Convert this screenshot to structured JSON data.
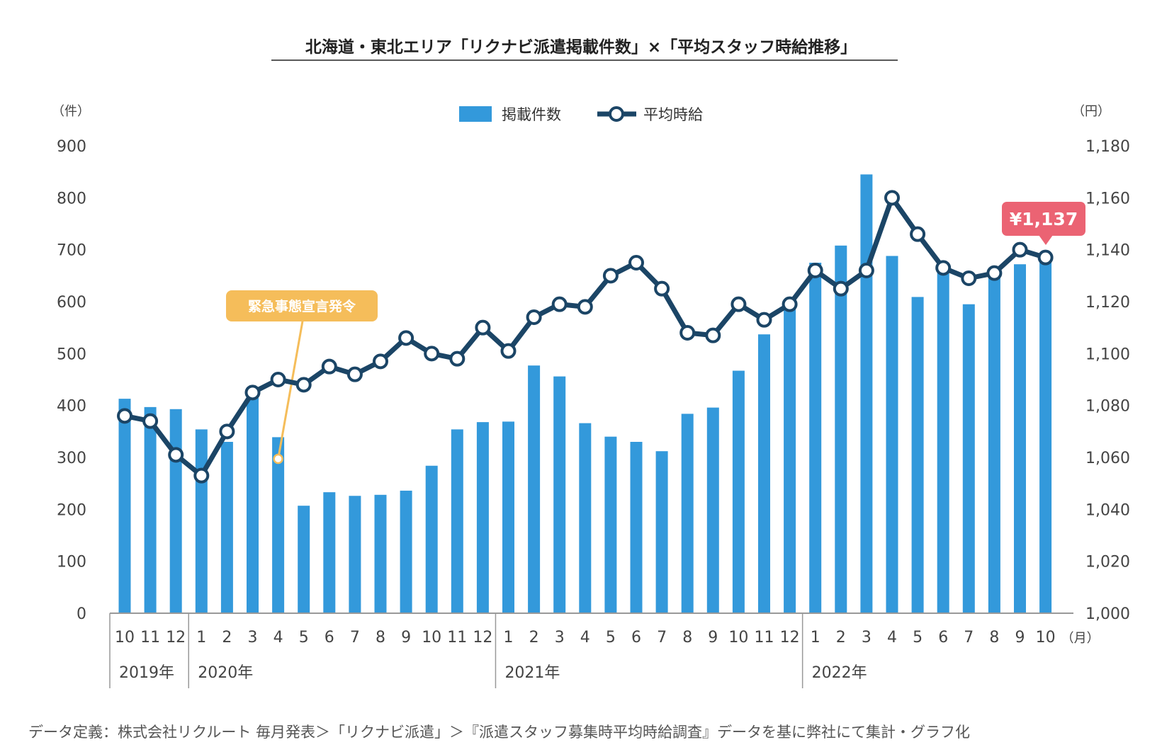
{
  "chart_data": {
    "type": "bar",
    "title": "北海道・東北エリア「リクナビ派遣掲載件数」×「平均スタッフ時給推移」",
    "left_unit": "（件）",
    "right_unit": "（円）",
    "month_unit": "（月）",
    "categories": [
      "10",
      "11",
      "12",
      "1",
      "2",
      "3",
      "4",
      "5",
      "6",
      "7",
      "8",
      "9",
      "10",
      "11",
      "12",
      "1",
      "2",
      "3",
      "4",
      "5",
      "6",
      "7",
      "8",
      "9",
      "10",
      "11",
      "12",
      "1",
      "2",
      "3",
      "4",
      "5",
      "6",
      "7",
      "8",
      "9",
      "10"
    ],
    "years": [
      {
        "label": "2019年",
        "start_index": 0
      },
      {
        "label": "2020年",
        "start_index": 3
      },
      {
        "label": "2021年",
        "start_index": 15
      },
      {
        "label": "2022年",
        "start_index": 27
      }
    ],
    "series": [
      {
        "name": "掲載件数",
        "type": "bar",
        "axis": "left",
        "color": "#3399db",
        "values": [
          413,
          397,
          393,
          354,
          330,
          415,
          339,
          207,
          233,
          226,
          228,
          236,
          284,
          354,
          368,
          369,
          477,
          456,
          366,
          340,
          330,
          312,
          384,
          396,
          467,
          537,
          598,
          675,
          708,
          845,
          688,
          609,
          667,
          595,
          650,
          672,
          690
        ]
      },
      {
        "name": "平均時給",
        "type": "line",
        "axis": "right",
        "color": "#1b4566",
        "values": [
          1076,
          1074,
          1061,
          1053,
          1070,
          1085,
          1090,
          1088,
          1095,
          1092,
          1097,
          1106,
          1100,
          1098,
          1110,
          1101,
          1114,
          1119,
          1118,
          1130,
          1135,
          1125,
          1108,
          1107,
          1119,
          1113,
          1119,
          1132,
          1125,
          1132,
          1160,
          1146,
          1133,
          1129,
          1131,
          1140,
          1137
        ]
      }
    ],
    "ylim_left": [
      0,
      900
    ],
    "ylim_right": [
      1000,
      1180
    ],
    "yticks_left": [
      "0",
      "100",
      "200",
      "300",
      "400",
      "500",
      "600",
      "700",
      "800",
      "900"
    ],
    "yticks_right": [
      "1,000",
      "1,020",
      "1,040",
      "1,060",
      "1,080",
      "1,100",
      "1,120",
      "1,140",
      "1,160",
      "1,180"
    ],
    "annotations": {
      "emergency_label": "緊急事態宣言発令",
      "emergency_index": 6,
      "emergency_color": "#f5bd5a",
      "latest_price_label": "¥1,137",
      "latest_price_color": "#eb6373"
    },
    "grid": false,
    "legend_position": "top-center"
  },
  "source_text": "データ定義：株式会社リクルート 毎月発表＞「リクナビ派遣」＞『派遣スタッフ募集時平均時給調査』データを基に弊社にて集計・グラフ化"
}
